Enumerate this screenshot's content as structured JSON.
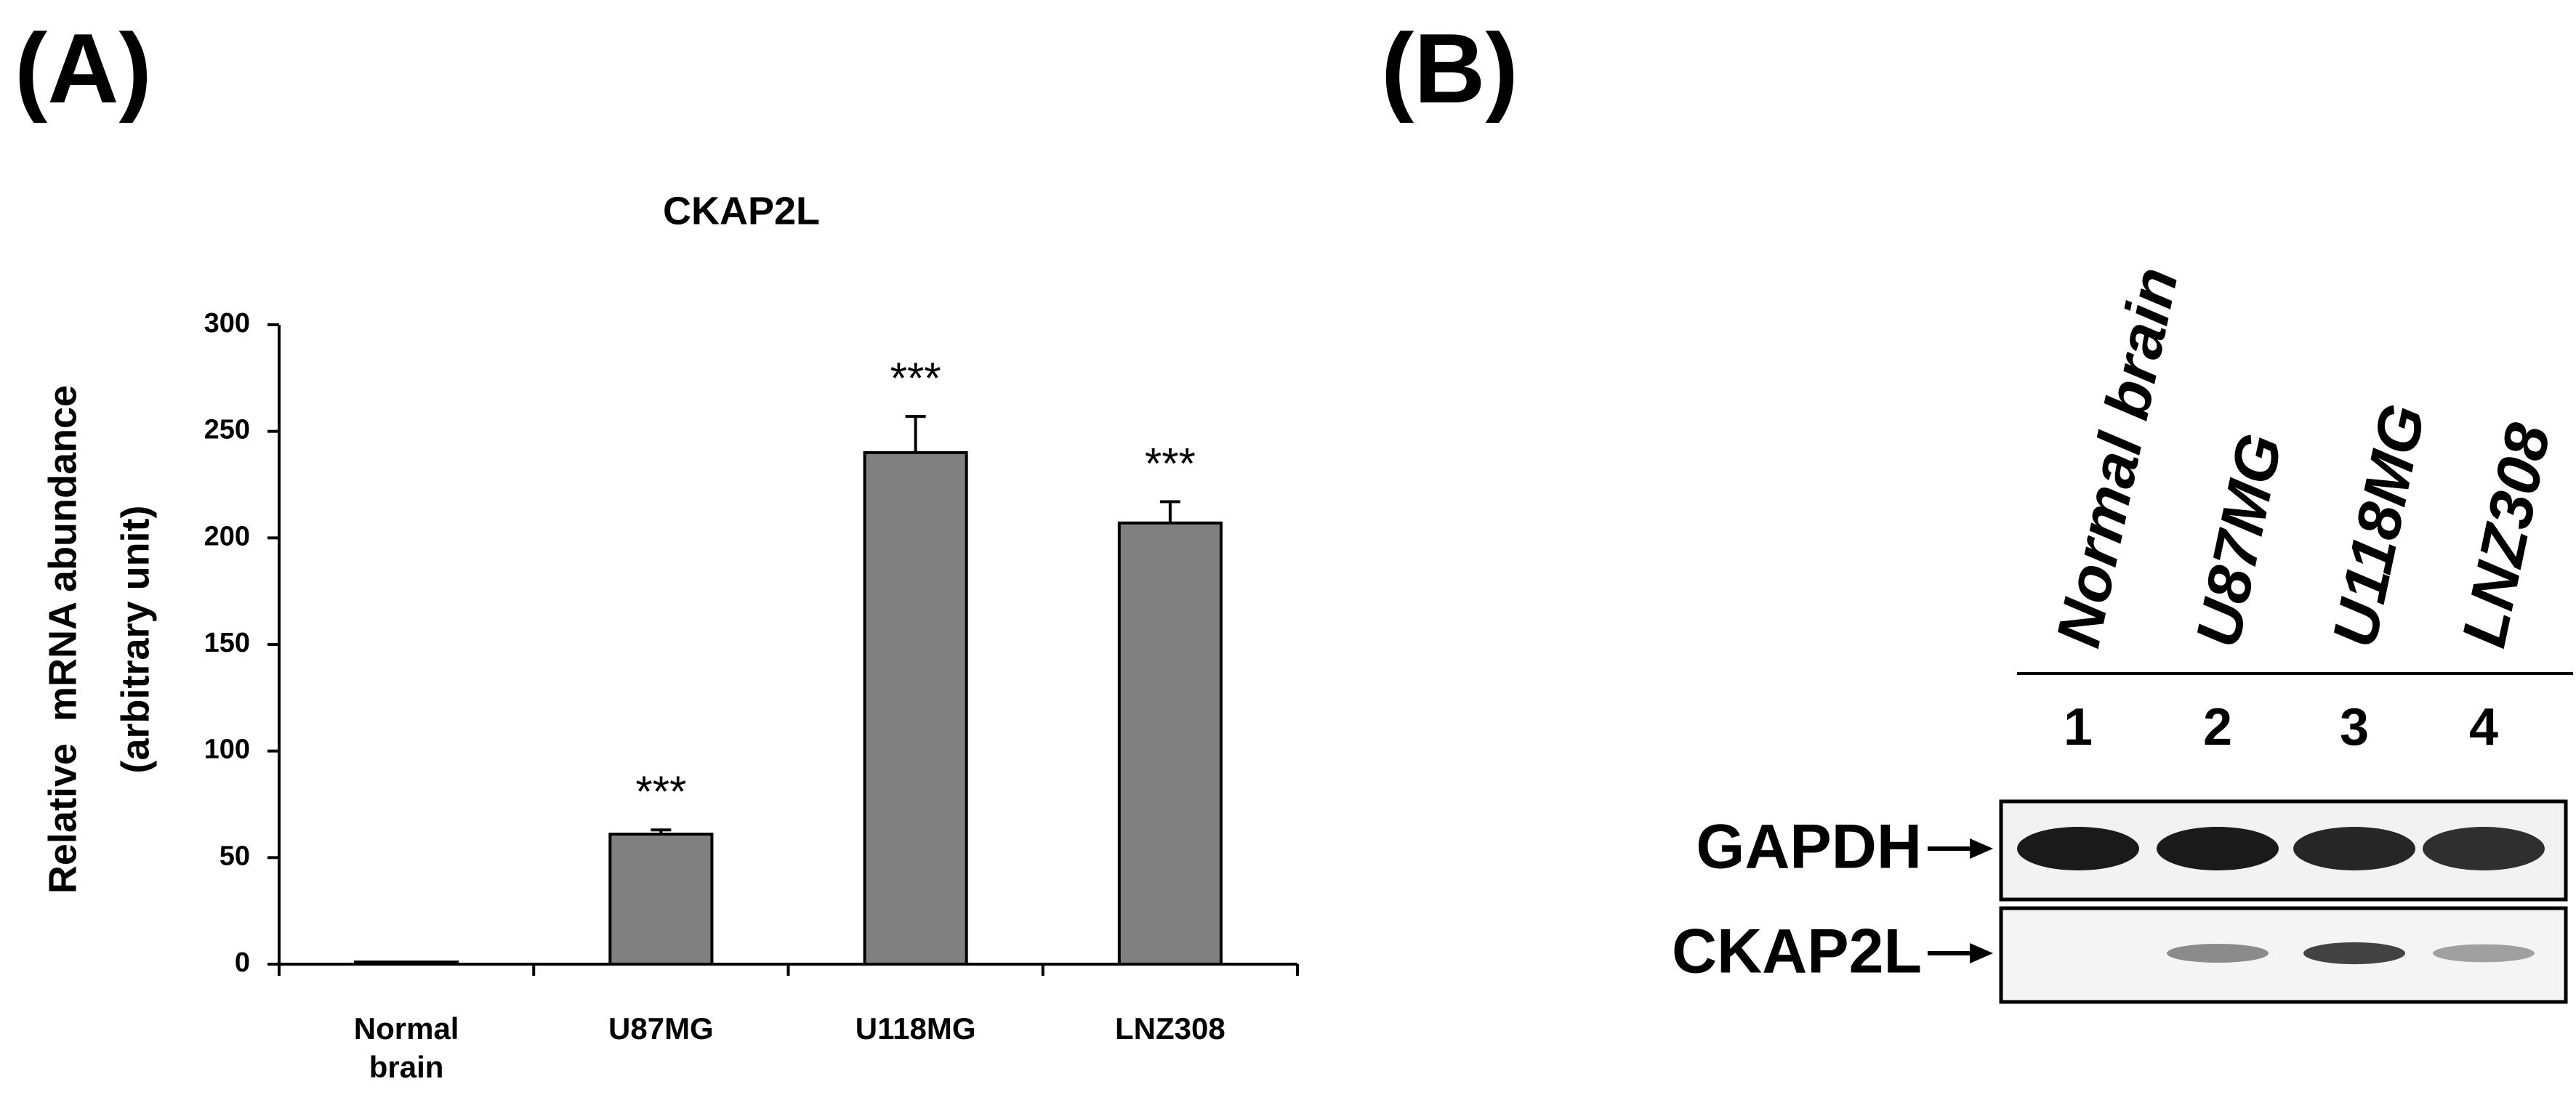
{
  "chart_data": {
    "type": "bar",
    "panel_label": "(A)",
    "title": "CKAP2L",
    "y_label": [
      "Relative  mRNA abundance",
      "(arbitrary unit)"
    ],
    "categories": [
      "Normal brain",
      "U87MG",
      "U118MG",
      "LNZ308"
    ],
    "values": [
      1,
      61,
      240,
      207
    ],
    "errors": [
      0,
      2,
      17,
      10
    ],
    "significance": [
      null,
      "***",
      "***",
      "***"
    ],
    "color": "#808080",
    "ylim": [
      0,
      300
    ],
    "yticks": [
      0,
      50,
      100,
      150,
      200,
      250,
      300
    ]
  },
  "blot": {
    "panel_label": "(B)",
    "lanes": [
      {
        "name": "Normal brain",
        "number": "1"
      },
      {
        "name": "U87MG",
        "number": "2"
      },
      {
        "name": "U118MG",
        "number": "3"
      },
      {
        "name": "LNZ308",
        "number": "4"
      }
    ],
    "rows": [
      "GAPDH",
      "CKAP2L"
    ]
  }
}
